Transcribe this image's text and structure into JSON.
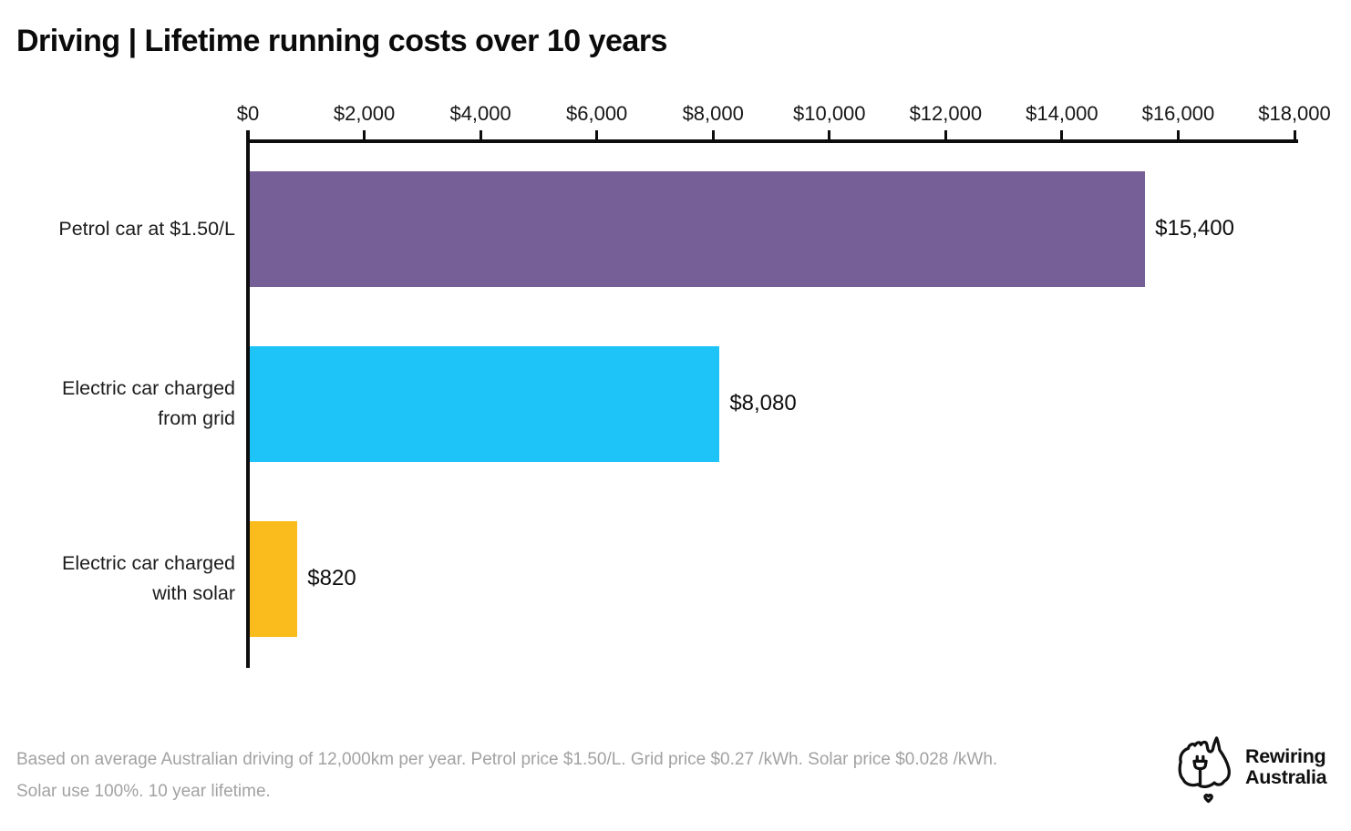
{
  "title": "Driving | Lifetime running costs over 10 years",
  "chart_data": {
    "type": "bar",
    "orientation": "horizontal",
    "title": "Driving | Lifetime running costs over 10 years",
    "categories": [
      "Petrol car at $1.50/L",
      "Electric car charged\nfrom grid",
      "Electric car charged\nwith solar"
    ],
    "values": [
      15400,
      8080,
      820
    ],
    "value_labels": [
      "$15,400",
      "$8,080",
      "$820"
    ],
    "bar_colors": [
      "#755F96",
      "#1EC3F8",
      "#FABB1C"
    ],
    "xlim": [
      0,
      18000
    ],
    "x_ticks": [
      0,
      2000,
      4000,
      6000,
      8000,
      10000,
      12000,
      14000,
      16000,
      18000
    ],
    "x_tick_labels": [
      "$0",
      "$2,000",
      "$4,000",
      "$6,000",
      "$8,000",
      "$10,000",
      "$12,000",
      "$14,000",
      "$16,000",
      "$18,000"
    ],
    "xlabel": "",
    "ylabel": "",
    "grid": false,
    "legend": "none",
    "axis_color": "#0d0d0d"
  },
  "footnote": {
    "lines": [
      "Based on average Australian driving of 12,000km per year. Petrol price $1.50/L. Grid price $0.27 /kWh. Solar price $0.028 /kWh.",
      "Solar use 100%. 10 year lifetime."
    ]
  },
  "logo": {
    "line1": "Rewiring",
    "line2": "Australia"
  }
}
